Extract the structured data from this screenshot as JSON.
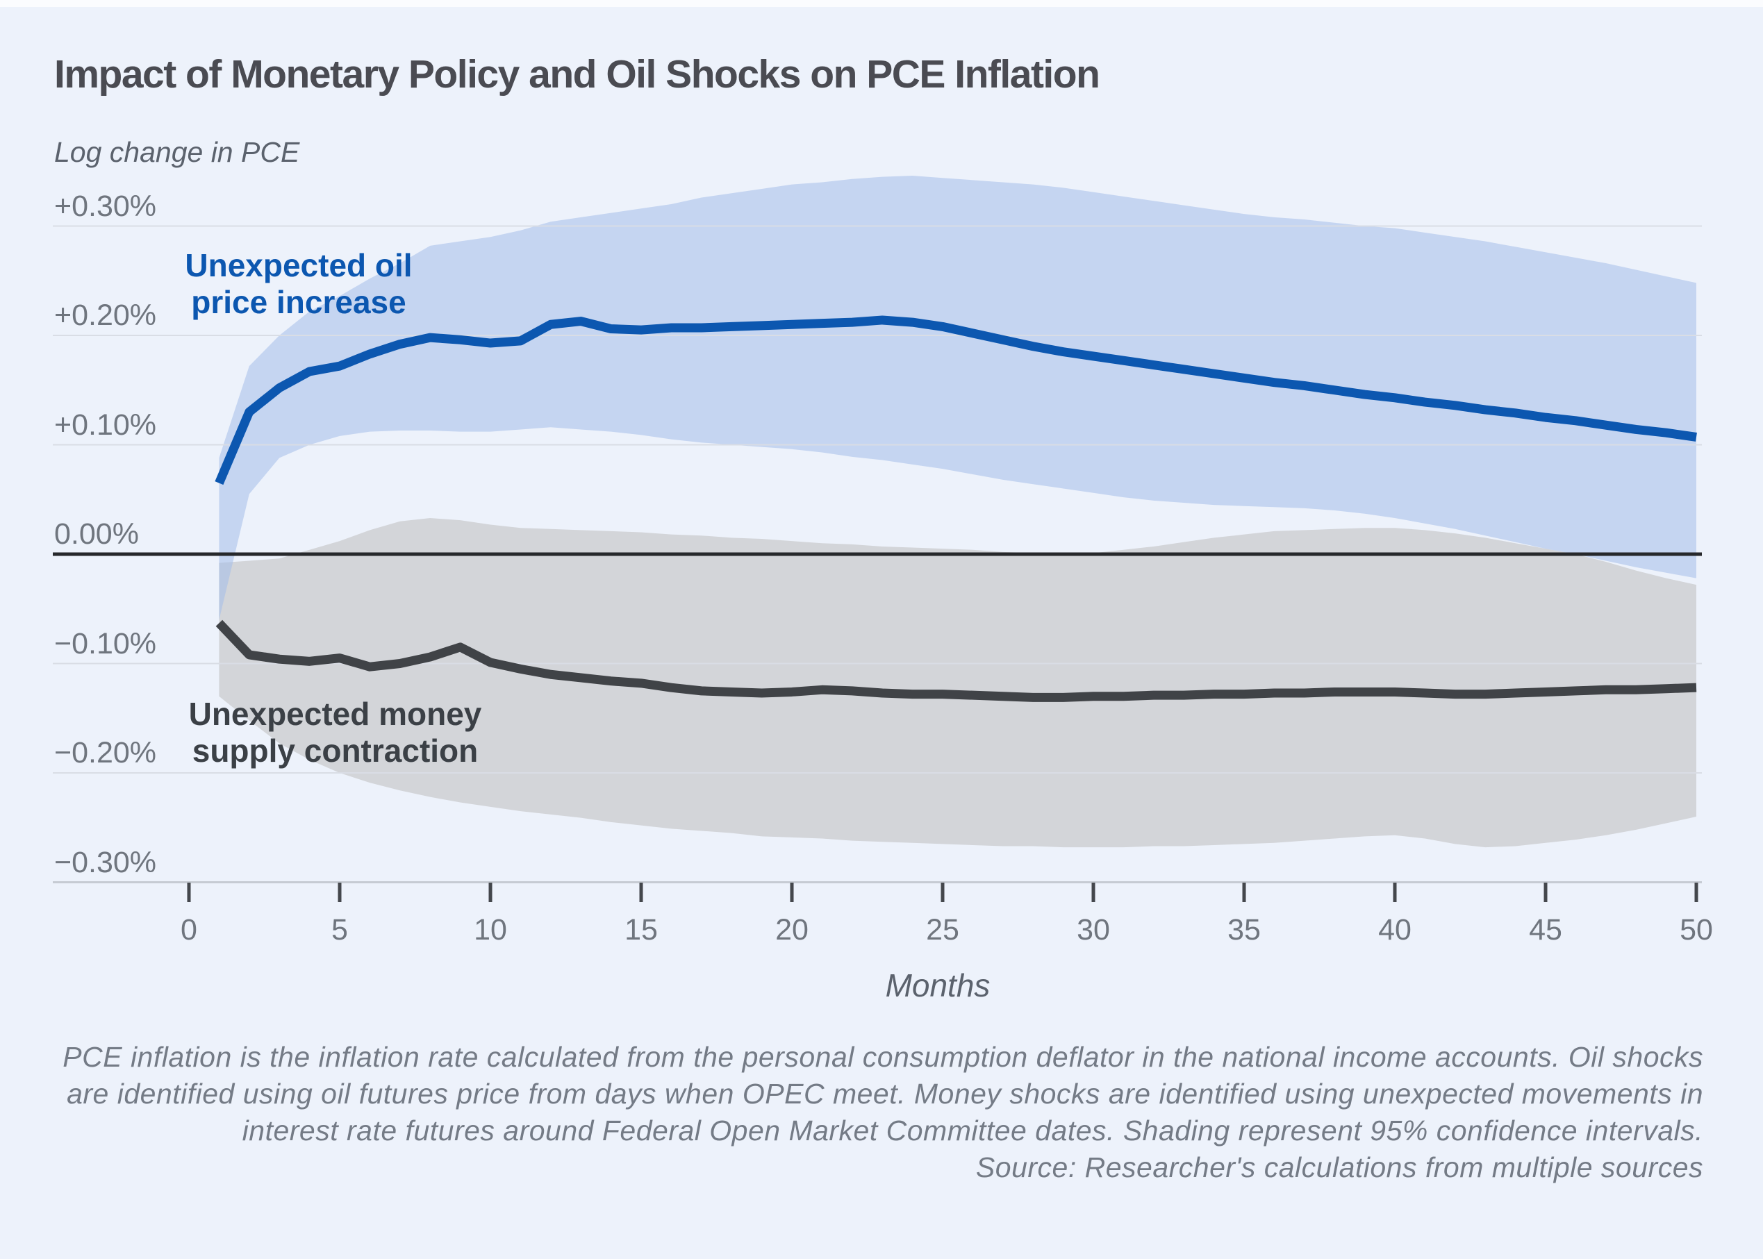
{
  "header": {
    "title": "Impact of Monetary Policy and Oil Shocks on PCE Inflation",
    "subtitle": "Log change in PCE"
  },
  "series_labels": {
    "oil": [
      "Unexpected oil",
      "price increase"
    ],
    "money": [
      "Unexpected money",
      "supply contraction"
    ]
  },
  "x_axis": {
    "label": "Months",
    "ticks": [
      "0",
      "5",
      "10",
      "15",
      "20",
      "25",
      "30",
      "35",
      "40",
      "45",
      "50"
    ]
  },
  "y_axis": {
    "labels": [
      "+0.30%",
      "+0.20%",
      "+0.10%",
      "0.00%",
      "−0.10%",
      "−0.20%",
      "−0.30%"
    ],
    "values": [
      0.3,
      0.2,
      0.1,
      0,
      -0.1,
      -0.2,
      -0.3
    ]
  },
  "colors": {
    "background": "#edf2fb",
    "gridline": "#d9dde5",
    "axis_baseline": "#c6cbd3",
    "zero_line": "#26282b",
    "tick": "#44474c",
    "oil_line": "#0c57b0",
    "oil_band_fill": "rgba(164,189,234,0.55)",
    "oil_band_apparent": "#c5d5f2",
    "money_line": "#404347",
    "money_band": "#d3d5d9",
    "title_text": "#4a4b52",
    "muted_text": "#6f757e",
    "note_text": "#747b86"
  },
  "chart_data": {
    "type": "line",
    "title": "Impact of Monetary Policy and Oil Shocks on PCE Inflation",
    "ylabel": "Log change in PCE",
    "xlabel": "Months",
    "ylim": [
      -0.3,
      0.3
    ],
    "xlim": [
      0,
      50
    ],
    "grid": true,
    "legend_position": "inline-annotations",
    "ci_level": "95%",
    "x": [
      1,
      2,
      3,
      4,
      5,
      6,
      7,
      8,
      9,
      10,
      11,
      12,
      13,
      14,
      15,
      16,
      17,
      18,
      19,
      20,
      21,
      22,
      23,
      24,
      25,
      26,
      27,
      28,
      29,
      30,
      31,
      32,
      33,
      34,
      35,
      36,
      37,
      38,
      39,
      40,
      41,
      42,
      43,
      44,
      45,
      46,
      47,
      48,
      49,
      50
    ],
    "series": [
      {
        "name": "Unexpected oil price increase",
        "color": "#0c57b0",
        "values": [
          0.065,
          0.13,
          0.152,
          0.167,
          0.172,
          0.183,
          0.192,
          0.198,
          0.196,
          0.193,
          0.195,
          0.21,
          0.213,
          0.206,
          0.205,
          0.207,
          0.207,
          0.208,
          0.209,
          0.21,
          0.211,
          0.212,
          0.214,
          0.212,
          0.208,
          0.202,
          0.196,
          0.19,
          0.185,
          0.181,
          0.177,
          0.173,
          0.169,
          0.165,
          0.161,
          0.157,
          0.154,
          0.15,
          0.146,
          0.143,
          0.139,
          0.136,
          0.132,
          0.129,
          0.125,
          0.122,
          0.118,
          0.114,
          0.111,
          0.107
        ],
        "ci_upper": [
          0.088,
          0.172,
          0.2,
          0.222,
          0.236,
          0.252,
          0.266,
          0.282,
          0.286,
          0.29,
          0.296,
          0.304,
          0.308,
          0.312,
          0.316,
          0.32,
          0.326,
          0.33,
          0.334,
          0.338,
          0.34,
          0.343,
          0.345,
          0.346,
          0.344,
          0.342,
          0.34,
          0.338,
          0.335,
          0.331,
          0.327,
          0.323,
          0.319,
          0.315,
          0.311,
          0.308,
          0.306,
          0.303,
          0.3,
          0.298,
          0.294,
          0.29,
          0.286,
          0.281,
          0.276,
          0.271,
          0.266,
          0.26,
          0.254,
          0.248
        ],
        "ci_lower": [
          -0.06,
          0.055,
          0.088,
          0.1,
          0.108,
          0.112,
          0.113,
          0.113,
          0.112,
          0.112,
          0.114,
          0.116,
          0.114,
          0.112,
          0.109,
          0.105,
          0.102,
          0.1,
          0.098,
          0.096,
          0.093,
          0.089,
          0.086,
          0.082,
          0.078,
          0.073,
          0.068,
          0.064,
          0.06,
          0.056,
          0.052,
          0.049,
          0.047,
          0.045,
          0.044,
          0.043,
          0.042,
          0.04,
          0.037,
          0.033,
          0.028,
          0.023,
          0.017,
          0.011,
          0.005,
          0.0,
          -0.006,
          -0.012,
          -0.017,
          -0.022
        ]
      },
      {
        "name": "Unexpected money supply contraction",
        "color": "#404347",
        "values": [
          -0.063,
          -0.092,
          -0.096,
          -0.098,
          -0.095,
          -0.103,
          -0.1,
          -0.094,
          -0.085,
          -0.099,
          -0.105,
          -0.11,
          -0.113,
          -0.116,
          -0.118,
          -0.122,
          -0.125,
          -0.126,
          -0.127,
          -0.126,
          -0.124,
          -0.125,
          -0.127,
          -0.128,
          -0.128,
          -0.129,
          -0.13,
          -0.131,
          -0.131,
          -0.13,
          -0.13,
          -0.129,
          -0.129,
          -0.128,
          -0.128,
          -0.127,
          -0.127,
          -0.126,
          -0.126,
          -0.126,
          -0.127,
          -0.128,
          -0.128,
          -0.127,
          -0.126,
          -0.125,
          -0.124,
          -0.124,
          -0.123,
          -0.122
        ],
        "ci_upper": [
          -0.008,
          -0.006,
          -0.004,
          0.004,
          0.012,
          0.022,
          0.03,
          0.033,
          0.031,
          0.027,
          0.024,
          0.023,
          0.022,
          0.021,
          0.02,
          0.018,
          0.017,
          0.015,
          0.014,
          0.012,
          0.01,
          0.009,
          0.007,
          0.006,
          0.005,
          0.004,
          0.002,
          0.001,
          0.0,
          0.001,
          0.004,
          0.007,
          0.011,
          0.015,
          0.018,
          0.021,
          0.022,
          0.023,
          0.024,
          0.024,
          0.022,
          0.019,
          0.015,
          0.01,
          0.005,
          0.0,
          -0.007,
          -0.015,
          -0.022,
          -0.028
        ],
        "ci_lower": [
          -0.13,
          -0.152,
          -0.173,
          -0.188,
          -0.2,
          -0.209,
          -0.216,
          -0.222,
          -0.227,
          -0.231,
          -0.235,
          -0.238,
          -0.241,
          -0.245,
          -0.248,
          -0.251,
          -0.253,
          -0.255,
          -0.258,
          -0.259,
          -0.26,
          -0.262,
          -0.263,
          -0.264,
          -0.265,
          -0.266,
          -0.267,
          -0.267,
          -0.268,
          -0.268,
          -0.268,
          -0.267,
          -0.267,
          -0.266,
          -0.265,
          -0.264,
          -0.262,
          -0.26,
          -0.258,
          -0.257,
          -0.26,
          -0.265,
          -0.268,
          -0.267,
          -0.264,
          -0.261,
          -0.257,
          -0.252,
          -0.246,
          -0.24
        ]
      }
    ]
  },
  "footer": {
    "lines": [
      "PCE inflation is the inflation rate calculated from the personal consumption deflator in the national income accounts. Oil shocks",
      "are identified using oil futures price from days when OPEC meet. Money shocks are identified using unexpected movements in",
      "interest rate futures around Federal Open Market Committee dates. Shading represent 95% confidence intervals.",
      "Source: Researcher's calculations from multiple sources"
    ]
  }
}
